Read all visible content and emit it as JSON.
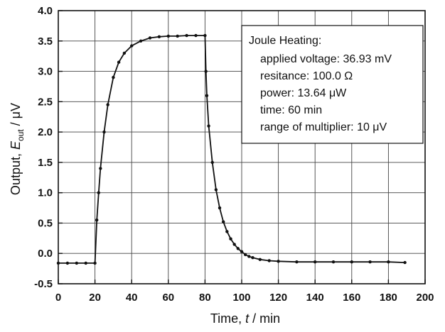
{
  "chart_data": {
    "type": "line",
    "xlabel": {
      "prefix": "Time, ",
      "var": "t",
      "suffix": " / min"
    },
    "ylabel": {
      "prefix": "Output, ",
      "var": "E",
      "sub": "out",
      "suffix": " / μV"
    },
    "xlim": [
      0,
      200
    ],
    "ylim": [
      -0.5,
      4.0
    ],
    "xticks": [
      0,
      20,
      40,
      60,
      80,
      100,
      120,
      140,
      160,
      180,
      200
    ],
    "yticks": [
      -0.5,
      0.0,
      0.5,
      1.0,
      1.5,
      2.0,
      2.5,
      3.0,
      3.5,
      4.0
    ],
    "xtick_labels": [
      "0",
      "20",
      "40",
      "60",
      "80",
      "100",
      "120",
      "140",
      "160",
      "180",
      "200"
    ],
    "ytick_labels": [
      "-0.5",
      "0.0",
      "0.5",
      "1.0",
      "1.5",
      "2.0",
      "2.5",
      "3.0",
      "3.5",
      "4.0"
    ],
    "grid": true,
    "series": [
      {
        "color": "#111111",
        "marker": "dot",
        "x": [
          0,
          5,
          10,
          15,
          20,
          21,
          22,
          23,
          25,
          27,
          30,
          33,
          36,
          40,
          45,
          50,
          55,
          60,
          65,
          70,
          75,
          80,
          80.5,
          81,
          82,
          84,
          86,
          88,
          90,
          92,
          94,
          96,
          98,
          100,
          102,
          104,
          106,
          110,
          115,
          120,
          130,
          140,
          150,
          160,
          170,
          180,
          189
        ],
        "y": [
          -0.16,
          -0.16,
          -0.16,
          -0.16,
          -0.16,
          0.55,
          1.0,
          1.4,
          2.0,
          2.45,
          2.9,
          3.15,
          3.3,
          3.42,
          3.5,
          3.55,
          3.57,
          3.58,
          3.58,
          3.59,
          3.59,
          3.59,
          3.0,
          2.6,
          2.1,
          1.5,
          1.05,
          0.75,
          0.52,
          0.36,
          0.24,
          0.15,
          0.08,
          0.03,
          -0.02,
          -0.05,
          -0.07,
          -0.1,
          -0.12,
          -0.13,
          -0.14,
          -0.14,
          -0.14,
          -0.14,
          -0.14,
          -0.14,
          -0.15
        ]
      }
    ]
  },
  "annotation": {
    "lines": [
      {
        "text": "Joule Heating:"
      },
      {
        "text": "applied voltage: 36.93 mV"
      },
      {
        "text": "resitance: 100.0 Ω"
      },
      {
        "text": "power: 13.64 μW"
      },
      {
        "text": "time: 60 min"
      },
      {
        "text": "range of multiplier: 10 μV"
      }
    ]
  }
}
